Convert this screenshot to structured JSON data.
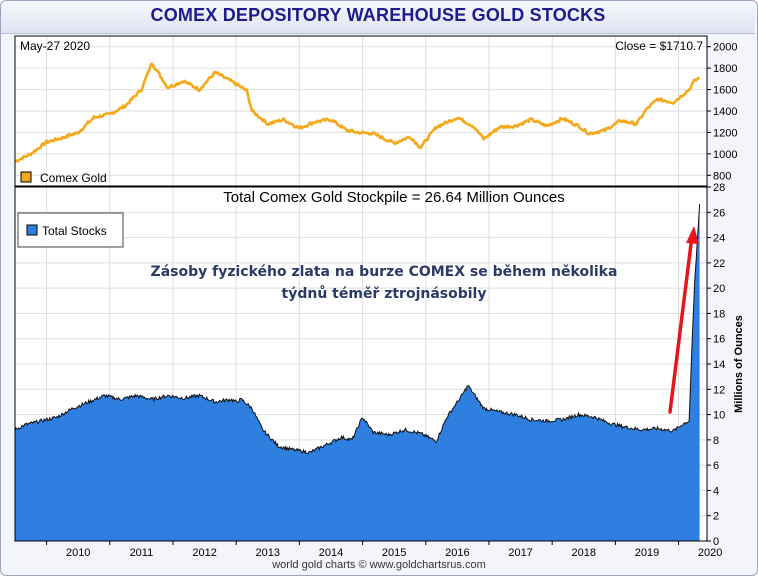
{
  "title": "COMEX DEPOSITORY WAREHOUSE GOLD STOCKS",
  "footer": "world gold charts © www.goldchartsrus.com",
  "colors": {
    "gold": "#f4a81a",
    "stocks_fill": "#2f7fe0",
    "stocks_line": "#111111",
    "arrow": "#e8131b",
    "title": "#1c1c8c",
    "annotation": "#2b3a67"
  },
  "chart_data": [
    {
      "type": "line",
      "panel": "top",
      "date_label": "May-27  2020",
      "close_label": "Close = $1710.7",
      "legend": [
        {
          "name": "Comex Gold",
          "color": "#f4a81a"
        }
      ],
      "legend_position": "bottom-left",
      "ylim": [
        700,
        2100
      ],
      "yticks": [
        "800",
        "1000",
        "1200",
        "1400",
        "1600",
        "1800",
        "2000"
      ],
      "x": [
        "2009-07",
        "2009-10",
        "2010-01",
        "2010-04",
        "2010-07",
        "2010-10",
        "2011-01",
        "2011-04",
        "2011-07",
        "2011-09",
        "2011-12",
        "2012-03",
        "2012-06",
        "2012-09",
        "2012-12",
        "2013-03",
        "2013-04",
        "2013-07",
        "2013-10",
        "2014-01",
        "2014-04",
        "2014-07",
        "2014-10",
        "2014-12",
        "2015-03",
        "2015-07",
        "2015-10",
        "2015-12",
        "2016-03",
        "2016-07",
        "2016-10",
        "2016-12",
        "2017-03",
        "2017-06",
        "2017-09",
        "2017-12",
        "2018-03",
        "2018-06",
        "2018-08",
        "2018-11",
        "2019-02",
        "2019-05",
        "2019-07",
        "2019-09",
        "2019-12",
        "2020-03",
        "2020-04",
        "2020-05"
      ],
      "y": [
        930,
        1000,
        1110,
        1150,
        1200,
        1340,
        1370,
        1450,
        1600,
        1850,
        1620,
        1680,
        1600,
        1760,
        1680,
        1590,
        1400,
        1280,
        1320,
        1240,
        1300,
        1320,
        1220,
        1200,
        1190,
        1100,
        1160,
        1060,
        1250,
        1340,
        1260,
        1140,
        1250,
        1260,
        1320,
        1260,
        1330,
        1260,
        1190,
        1220,
        1310,
        1280,
        1420,
        1510,
        1480,
        1600,
        1680,
        1710
      ],
      "grid": true
    },
    {
      "type": "area",
      "panel": "bottom",
      "title": "Total Comex Gold Stockpile = 26.64 Million Ounces",
      "ylabel": "Millions of Ounces",
      "legend": [
        {
          "name": "Total Stocks",
          "color": "#2f7fe0"
        }
      ],
      "legend_position": "top-left",
      "ylim": [
        0,
        28
      ],
      "yticks": [
        "0",
        "2",
        "4",
        "6",
        "8",
        "10",
        "12",
        "14",
        "16",
        "18",
        "20",
        "22",
        "24",
        "26",
        "28"
      ],
      "xticks": [
        "2010",
        "2011",
        "2012",
        "2013",
        "2014",
        "2015",
        "2016",
        "2017",
        "2018",
        "2019",
        "2020"
      ],
      "x": [
        "2009-07",
        "2009-09",
        "2009-12",
        "2010-03",
        "2010-06",
        "2010-09",
        "2010-12",
        "2011-03",
        "2011-06",
        "2011-09",
        "2011-12",
        "2012-03",
        "2012-06",
        "2012-09",
        "2012-12",
        "2013-01",
        "2013-02",
        "2013-04",
        "2013-06",
        "2013-09",
        "2013-12",
        "2014-03",
        "2014-06",
        "2014-09",
        "2014-11",
        "2015-01",
        "2015-03",
        "2015-06",
        "2015-09",
        "2015-12",
        "2016-03",
        "2016-05",
        "2016-08",
        "2016-09",
        "2016-12",
        "2017-03",
        "2017-06",
        "2017-09",
        "2017-12",
        "2018-03",
        "2018-06",
        "2018-09",
        "2018-12",
        "2019-03",
        "2019-06",
        "2019-09",
        "2019-12",
        "2020-02",
        "2020-03",
        "2020-04",
        "2020-05"
      ],
      "y": [
        8.8,
        9.2,
        9.5,
        9.8,
        10.5,
        11.0,
        11.5,
        11.2,
        11.5,
        11.2,
        11.5,
        11.3,
        11.5,
        11.0,
        11.2,
        11.0,
        11.2,
        10.5,
        8.8,
        7.5,
        7.2,
        7.0,
        7.6,
        8.2,
        8.0,
        9.8,
        8.6,
        8.4,
        8.8,
        8.5,
        7.9,
        9.8,
        11.6,
        12.3,
        10.5,
        10.2,
        10.0,
        9.6,
        9.5,
        9.6,
        10.0,
        9.8,
        9.3,
        9.0,
        8.8,
        8.9,
        8.7,
        9.3,
        9.5,
        20.0,
        26.64
      ],
      "annotation": [
        "Zásoby fyzického zlata na burze COMEX se během několika",
        "týdnů téměř ztrojnásobily"
      ],
      "grid": true
    }
  ]
}
